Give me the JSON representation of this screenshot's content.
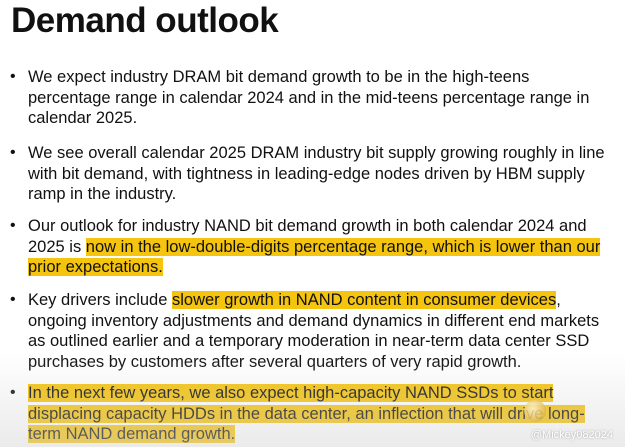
{
  "title": "Demand outlook",
  "bullet_glyph": "•",
  "bullets": [
    {
      "lines": [
        [
          {
            "t": "We expect industry DRAM bit demand growth to be in the high-teens",
            "hl": false
          }
        ],
        [
          {
            "t": "percentage range in calendar 2024 and in the mid-teens percentage range in",
            "hl": false
          }
        ],
        [
          {
            "t": "calendar 2025.",
            "hl": false
          }
        ]
      ]
    },
    {
      "lines": [
        [
          {
            "t": "We see overall calendar 2025 DRAM industry bit supply growing roughly in line",
            "hl": false
          }
        ],
        [
          {
            "t": "with bit demand, with tightness in leading-edge nodes driven by HBM supply",
            "hl": false
          }
        ],
        [
          {
            "t": "ramp in the industry.",
            "hl": false
          }
        ]
      ]
    },
    {
      "lines": [
        [
          {
            "t": "Our outlook for industry NAND bit demand growth in both calendar 2024 and",
            "hl": false
          }
        ],
        [
          {
            "t": "2025 is ",
            "hl": false
          },
          {
            "t": "now in the low-double-digits percentage range, which is lower than our",
            "hl": true
          }
        ],
        [
          {
            "t": "prior expectations.",
            "hl": true
          }
        ]
      ]
    },
    {
      "lines": [
        [
          {
            "t": "Key drivers include ",
            "hl": false
          },
          {
            "t": "slower growth in NAND content in consumer devices",
            "hl": true
          },
          {
            "t": ",",
            "hl": false
          }
        ],
        [
          {
            "t": "ongoing inventory adjustments and demand dynamics in different end markets",
            "hl": false
          }
        ],
        [
          {
            "t": "as outlined earlier and a temporary moderation in near-term data center SSD",
            "hl": false
          }
        ],
        [
          {
            "t": "purchases by customers after several quarters of very rapid growth.",
            "hl": false
          }
        ]
      ]
    },
    {
      "lines": [
        [
          {
            "t": "In the next few years, we also expect high-capacity NAND SSDs to start",
            "hl": true
          }
        ],
        [
          {
            "t": "displacing capacity HDDs in the data center, an inflection that will drive long-",
            "hl": true
          }
        ],
        [
          {
            "t": "term NAND demand growth.",
            "hl": true
          }
        ]
      ]
    }
  ],
  "watermark": "@Mickey082024",
  "colors": {
    "highlight": "#f5c40f",
    "text": "#111111",
    "background": "#ffffff"
  }
}
